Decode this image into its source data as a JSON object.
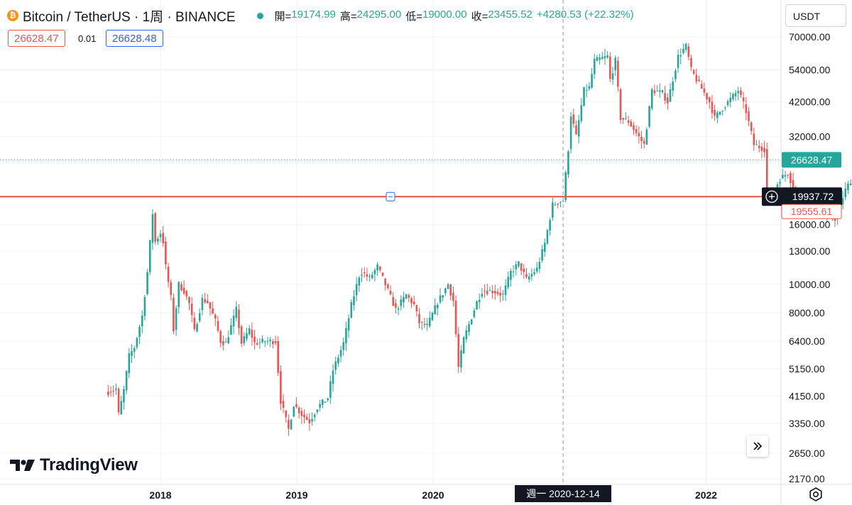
{
  "header": {
    "symbol": "Bitcoin / TetherUS · 1周 · BINANCE",
    "coin_icon": "bitcoin-icon",
    "open_label": "開=",
    "open_value": "19174.99",
    "high_label": "高=",
    "high_value": "24295.00",
    "low_label": "低=",
    "low_value": "19000.00",
    "close_label": "收=",
    "close_value": "23455.52",
    "change_value": "+4280.53 (+22.32%)"
  },
  "trade": {
    "sell_price": "26628.47",
    "spread": "0.01",
    "buy_price": "26628.48"
  },
  "currency": "USDT",
  "brand": "TradingView",
  "colors": {
    "up": "#26a69a",
    "down": "#ef5350",
    "hline": "#e15252",
    "buy": "#2962ff"
  },
  "chart_data": {
    "type": "candlestick",
    "interval": "1W",
    "y_scale": "log",
    "ylim": [
      2000,
      75000
    ],
    "y_ticks": [
      "70000.00",
      "54000.00",
      "42000.00",
      "32000.00",
      "16000.00",
      "13000.00",
      "10000.00",
      "8000.00",
      "6400.00",
      "5150.00",
      "4150.00",
      "3350.00",
      "2650.00",
      "2170.00"
    ],
    "x_ticks": [
      "2018",
      "2019",
      "2020",
      "2022"
    ],
    "grid": true,
    "current_price": "26628.47",
    "horizontal_line": {
      "price": 19937.72,
      "label": "19937.72"
    },
    "low_marker_label": "19555.61",
    "crosshair_label": "週一 2020-12-14",
    "anchors": [
      [
        "2017-08-14",
        4300
      ],
      [
        "2017-09-04",
        4400
      ],
      [
        "2017-09-11",
        3600
      ],
      [
        "2017-09-25",
        4350
      ],
      [
        "2017-10-09",
        5700
      ],
      [
        "2017-10-23",
        6100
      ],
      [
        "2017-11-13",
        7800
      ],
      [
        "2017-11-27",
        11000
      ],
      [
        "2017-12-11",
        17500
      ],
      [
        "2017-12-18",
        14000
      ],
      [
        "2018-01-01",
        15000
      ],
      [
        "2018-01-08",
        14000
      ],
      [
        "2018-01-15",
        11500
      ],
      [
        "2018-01-29",
        9000
      ],
      [
        "2018-02-05",
        7000
      ],
      [
        "2018-02-19",
        10000
      ],
      [
        "2018-03-05",
        9500
      ],
      [
        "2018-03-19",
        8600
      ],
      [
        "2018-04-02",
        6900
      ],
      [
        "2018-04-23",
        8900
      ],
      [
        "2018-05-07",
        8700
      ],
      [
        "2018-05-28",
        7500
      ],
      [
        "2018-06-11",
        6400
      ],
      [
        "2018-06-25",
        6300
      ],
      [
        "2018-07-23",
        8200
      ],
      [
        "2018-08-06",
        6300
      ],
      [
        "2018-08-27",
        7000
      ],
      [
        "2018-09-10",
        6300
      ],
      [
        "2018-10-08",
        6400
      ],
      [
        "2018-11-05",
        6400
      ],
      [
        "2018-11-19",
        4000
      ],
      [
        "2018-12-10",
        3200
      ],
      [
        "2018-12-24",
        3900
      ],
      [
        "2019-01-14",
        3600
      ],
      [
        "2019-02-04",
        3400
      ],
      [
        "2019-02-25",
        3800
      ],
      [
        "2019-03-25",
        4100
      ],
      [
        "2019-04-08",
        5100
      ],
      [
        "2019-05-06",
        6300
      ],
      [
        "2019-05-27",
        8500
      ],
      [
        "2019-06-17",
        10700
      ],
      [
        "2019-06-24",
        11000
      ],
      [
        "2019-07-15",
        10500
      ],
      [
        "2019-08-05",
        11500
      ],
      [
        "2019-08-26",
        10000
      ],
      [
        "2019-09-23",
        8200
      ],
      [
        "2019-10-21",
        9200
      ],
      [
        "2019-11-11",
        8500
      ],
      [
        "2019-11-25",
        7400
      ],
      [
        "2019-12-16",
        7200
      ],
      [
        "2020-01-13",
        8700
      ],
      [
        "2020-02-10",
        10000
      ],
      [
        "2020-02-24",
        8800
      ],
      [
        "2020-03-09",
        5200
      ],
      [
        "2020-03-23",
        6500
      ],
      [
        "2020-04-27",
        8700
      ],
      [
        "2020-05-11",
        9500
      ],
      [
        "2020-06-08",
        9500
      ],
      [
        "2020-07-06",
        9200
      ],
      [
        "2020-07-27",
        11000
      ],
      [
        "2020-08-17",
        11800
      ],
      [
        "2020-09-07",
        10400
      ],
      [
        "2020-10-05",
        11300
      ],
      [
        "2020-10-26",
        13800
      ],
      [
        "2020-11-16",
        18700
      ],
      [
        "2020-12-14",
        19400
      ],
      [
        "2020-12-28",
        29000
      ],
      [
        "2021-01-04",
        38000
      ],
      [
        "2021-01-18",
        32000
      ],
      [
        "2021-02-08",
        46000
      ],
      [
        "2021-02-22",
        47000
      ],
      [
        "2021-03-08",
        58000
      ],
      [
        "2021-04-12",
        60000
      ],
      [
        "2021-04-19",
        50000
      ],
      [
        "2021-05-03",
        58000
      ],
      [
        "2021-05-17",
        37000
      ],
      [
        "2021-06-07",
        36000
      ],
      [
        "2021-07-19",
        30000
      ],
      [
        "2021-08-09",
        46000
      ],
      [
        "2021-09-06",
        45000
      ],
      [
        "2021-09-20",
        42000
      ],
      [
        "2021-10-18",
        60000
      ],
      [
        "2021-11-08",
        65000
      ],
      [
        "2021-11-22",
        54000
      ],
      [
        "2021-12-06",
        50000
      ],
      [
        "2022-01-10",
        42000
      ],
      [
        "2022-01-24",
        37000
      ],
      [
        "2022-02-14",
        40000
      ],
      [
        "2022-03-28",
        46000
      ],
      [
        "2022-04-18",
        39000
      ],
      [
        "2022-05-09",
        30000
      ],
      [
        "2022-06-06",
        29000
      ],
      [
        "2022-06-13",
        20500
      ],
      [
        "2022-06-20",
        19500
      ],
      [
        "2022-07-18",
        23000
      ],
      [
        "2022-08-08",
        24000
      ],
      [
        "2022-08-22",
        21500
      ],
      [
        "2022-09-12",
        20000
      ],
      [
        "2022-10-10",
        19300
      ],
      [
        "2022-10-24",
        20500
      ],
      [
        "2022-11-07",
        17000
      ],
      [
        "2022-12-12",
        16800
      ],
      [
        "2023-01-09",
        21000
      ],
      [
        "2023-01-30",
        23500
      ],
      [
        "2023-02-13",
        24500
      ],
      [
        "2023-03-06",
        20500
      ],
      [
        "2023-03-13",
        26500
      ]
    ]
  }
}
